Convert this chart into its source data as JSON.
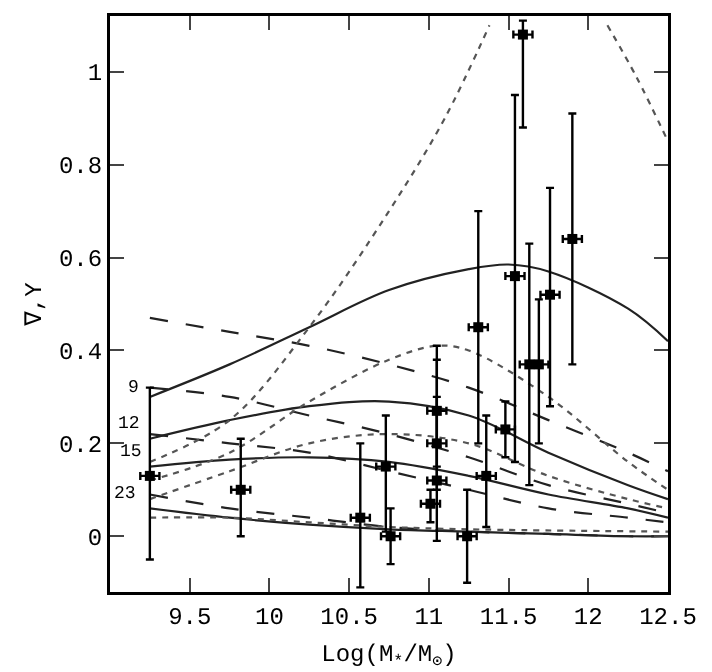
{
  "chart_data": {
    "type": "line",
    "xlabel": "Log(M$_{*}$/M$_{⊙}$)",
    "ylabel": "∇,Υ",
    "xlim": [
      9,
      12.5
    ],
    "xticks": [
      9.5,
      10,
      10.5,
      11,
      11.5,
      12,
      12.5
    ],
    "ylim": [
      -0.12,
      1.12
    ],
    "yticks": [
      0,
      0.2,
      0.4,
      0.6,
      0.8,
      1
    ],
    "grid": false,
    "annotations": [
      {
        "text": "9",
        "x": 9.24,
        "y": 0.32
      },
      {
        "text": "12",
        "x": 9.25,
        "y": 0.21
      },
      {
        "text": "15",
        "x": 9.26,
        "y": 0.15
      },
      {
        "text": "23",
        "x": 9.23,
        "y": 0.06
      }
    ],
    "series": [
      {
        "line_style": "solid",
        "color": "#222222",
        "x": [
          9.25,
          9.75,
          10.25,
          10.75,
          11.25,
          11.5,
          11.75,
          12.25,
          12.5
        ],
        "values": [
          0.3,
          0.37,
          0.45,
          0.53,
          0.575,
          0.585,
          0.57,
          0.49,
          0.42
        ]
      },
      {
        "line_style": "solid",
        "color": "#222222",
        "x": [
          9.25,
          9.75,
          10.25,
          10.75,
          11.25,
          11.75,
          12.25,
          12.5
        ],
        "values": [
          0.21,
          0.25,
          0.28,
          0.29,
          0.26,
          0.18,
          0.11,
          0.08
        ]
      },
      {
        "line_style": "solid",
        "color": "#222222",
        "x": [
          9.25,
          9.75,
          10.25,
          10.75,
          11.25,
          11.75,
          12.25,
          12.5
        ],
        "values": [
          0.15,
          0.165,
          0.17,
          0.16,
          0.13,
          0.09,
          0.06,
          0.04
        ]
      },
      {
        "line_style": "solid",
        "color": "#222222",
        "x": [
          9.25,
          9.75,
          10.25,
          10.75,
          11.25,
          11.75,
          12.25,
          12.5
        ],
        "values": [
          0.06,
          0.04,
          0.025,
          0.015,
          0.01,
          0.005,
          0.0,
          0.0
        ]
      },
      {
        "line_style": "dashed",
        "color": "#222222",
        "x": [
          9.25,
          9.75,
          10.25,
          10.75,
          11.25,
          11.75,
          12.25,
          12.5
        ],
        "values": [
          0.47,
          0.44,
          0.41,
          0.37,
          0.32,
          0.25,
          0.18,
          0.14
        ]
      },
      {
        "line_style": "dashed",
        "color": "#222222",
        "x": [
          9.25,
          9.75,
          10.25,
          10.75,
          11.25,
          11.75,
          12.25,
          12.5
        ],
        "values": [
          0.32,
          0.3,
          0.26,
          0.22,
          0.17,
          0.11,
          0.07,
          0.05
        ]
      },
      {
        "line_style": "dashed",
        "color": "#222222",
        "x": [
          9.25,
          9.75,
          10.25,
          10.75,
          11.25,
          11.75,
          12.25,
          12.5
        ],
        "values": [
          0.22,
          0.2,
          0.18,
          0.14,
          0.1,
          0.06,
          0.04,
          0.03
        ]
      },
      {
        "line_style": "dashed",
        "color": "#222222",
        "x": [
          9.25,
          9.75,
          10.25,
          10.75,
          11.25,
          11.75,
          12.25,
          12.5
        ],
        "values": [
          0.09,
          0.06,
          0.04,
          0.02,
          0.01,
          0.005,
          0.0,
          0.0
        ]
      },
      {
        "line_style": "dotted",
        "color": "#555555",
        "x": [
          9.25,
          9.75,
          10.25,
          10.75,
          11.1,
          11.38,
          11.75,
          12.12,
          12.3,
          12.5
        ],
        "values": [
          0.16,
          0.25,
          0.45,
          0.7,
          0.9,
          1.1,
          null,
          1.1,
          0.99,
          0.85
        ]
      },
      {
        "line_style": "dotted",
        "color": "#555555",
        "x": [
          9.25,
          9.75,
          10.25,
          10.75,
          11.05,
          11.25,
          11.75,
          12.25,
          12.5
        ],
        "values": [
          0.12,
          0.18,
          0.29,
          0.38,
          0.41,
          0.4,
          0.3,
          0.16,
          0.1
        ]
      },
      {
        "line_style": "dotted",
        "color": "#555555",
        "x": [
          9.25,
          9.75,
          10.25,
          10.75,
          11.25,
          11.75,
          12.25,
          12.5
        ],
        "values": [
          0.08,
          0.14,
          0.2,
          0.22,
          0.2,
          0.13,
          0.08,
          0.06
        ]
      },
      {
        "line_style": "dotted",
        "color": "#555555",
        "x": [
          9.25,
          9.75,
          10.25,
          10.75,
          11.25,
          12.5
        ],
        "values": [
          0.04,
          0.04,
          0.03,
          0.02,
          0.015,
          0.01
        ]
      },
      {
        "type": "scatter",
        "marker": "square",
        "color": "#000000",
        "x": [
          9.25,
          9.82,
          10.57,
          10.73,
          10.76,
          11.01,
          11.05,
          11.05,
          11.05,
          11.24,
          11.31,
          11.36,
          11.48,
          11.54,
          11.59,
          11.63,
          11.69,
          11.76,
          11.9
        ],
        "values": [
          0.13,
          0.1,
          0.04,
          0.15,
          0.0,
          0.07,
          0.12,
          0.2,
          0.27,
          0.0,
          0.45,
          0.13,
          0.23,
          0.56,
          1.08,
          0.37,
          0.37,
          0.52,
          0.64
        ],
        "errors": [
          [
            -0.05,
            0.32
          ],
          [
            0.0,
            0.21
          ],
          [
            -0.11,
            0.2
          ],
          [
            0.01,
            0.26
          ],
          [
            -0.06,
            0.06
          ],
          [
            0.03,
            0.1
          ],
          [
            -0.01,
            0.41
          ],
          [
            0.1,
            0.3
          ],
          [
            0.15,
            0.38
          ],
          [
            -0.1,
            0.1
          ],
          [
            0.2,
            0.7
          ],
          [
            0.02,
            0.26
          ],
          [
            0.17,
            0.29
          ],
          [
            0.16,
            0.95
          ],
          [
            0.88,
            1.11
          ],
          [
            0.11,
            0.63
          ],
          [
            0.2,
            0.51
          ],
          [
            0.28,
            0.75
          ],
          [
            0.37,
            0.91
          ]
        ],
        "xerrors": [
          0.06,
          0.06,
          0.06,
          0.06,
          0.06,
          0.06,
          0.06,
          0.06,
          0.06,
          0.06,
          0.06,
          0.06,
          0.06,
          0.06,
          0.06,
          0.06,
          0.06,
          0.06,
          0.06
        ]
      }
    ]
  }
}
